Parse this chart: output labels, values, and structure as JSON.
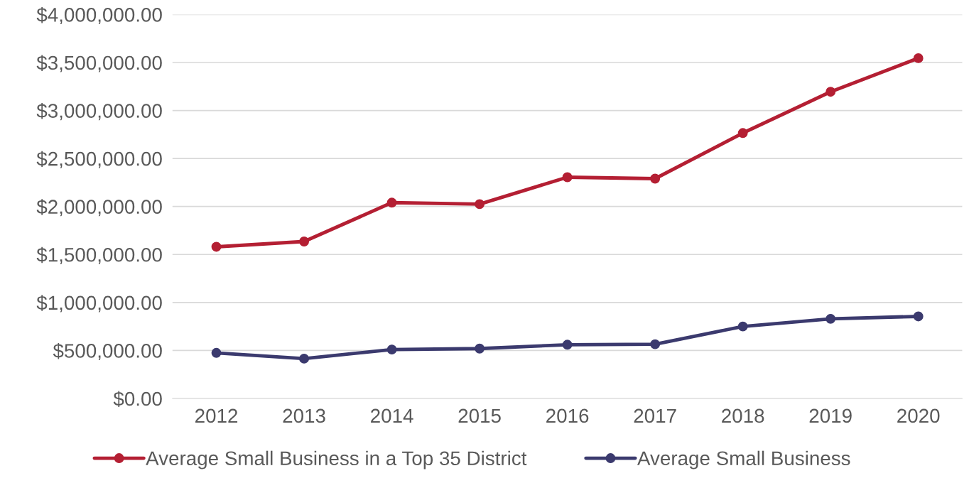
{
  "chart_data": {
    "type": "line",
    "categories": [
      "2012",
      "2013",
      "2014",
      "2015",
      "2016",
      "2017",
      "2018",
      "2019",
      "2020"
    ],
    "series": [
      {
        "name": "Average Small Business in a Top 35 District",
        "color": "#b41f33",
        "values": [
          1580000,
          1635000,
          2040000,
          2025000,
          2305000,
          2290000,
          2765000,
          3195000,
          3545000
        ]
      },
      {
        "name": "Average Small Business",
        "color": "#3b3a6e",
        "values": [
          475000,
          415000,
          510000,
          520000,
          560000,
          565000,
          750000,
          830000,
          855000
        ]
      }
    ],
    "ylim": [
      0,
      4000000
    ],
    "yticks": [
      {
        "value": 0,
        "label": "$0.00"
      },
      {
        "value": 500000,
        "label": "$500,000.00"
      },
      {
        "value": 1000000,
        "label": "$1,000,000.00"
      },
      {
        "value": 1500000,
        "label": "$1,500,000.00"
      },
      {
        "value": 2000000,
        "label": "$2,000,000.00"
      },
      {
        "value": 2500000,
        "label": "$2,500,000.00"
      },
      {
        "value": 3000000,
        "label": "$3,000,000.00"
      },
      {
        "value": 3500000,
        "label": "$3,500,000.00"
      },
      {
        "value": 4000000,
        "label": "$4,000,000.00"
      }
    ],
    "grid": "y",
    "legend": "bottom",
    "marker": "circle",
    "line_style": "solid"
  }
}
